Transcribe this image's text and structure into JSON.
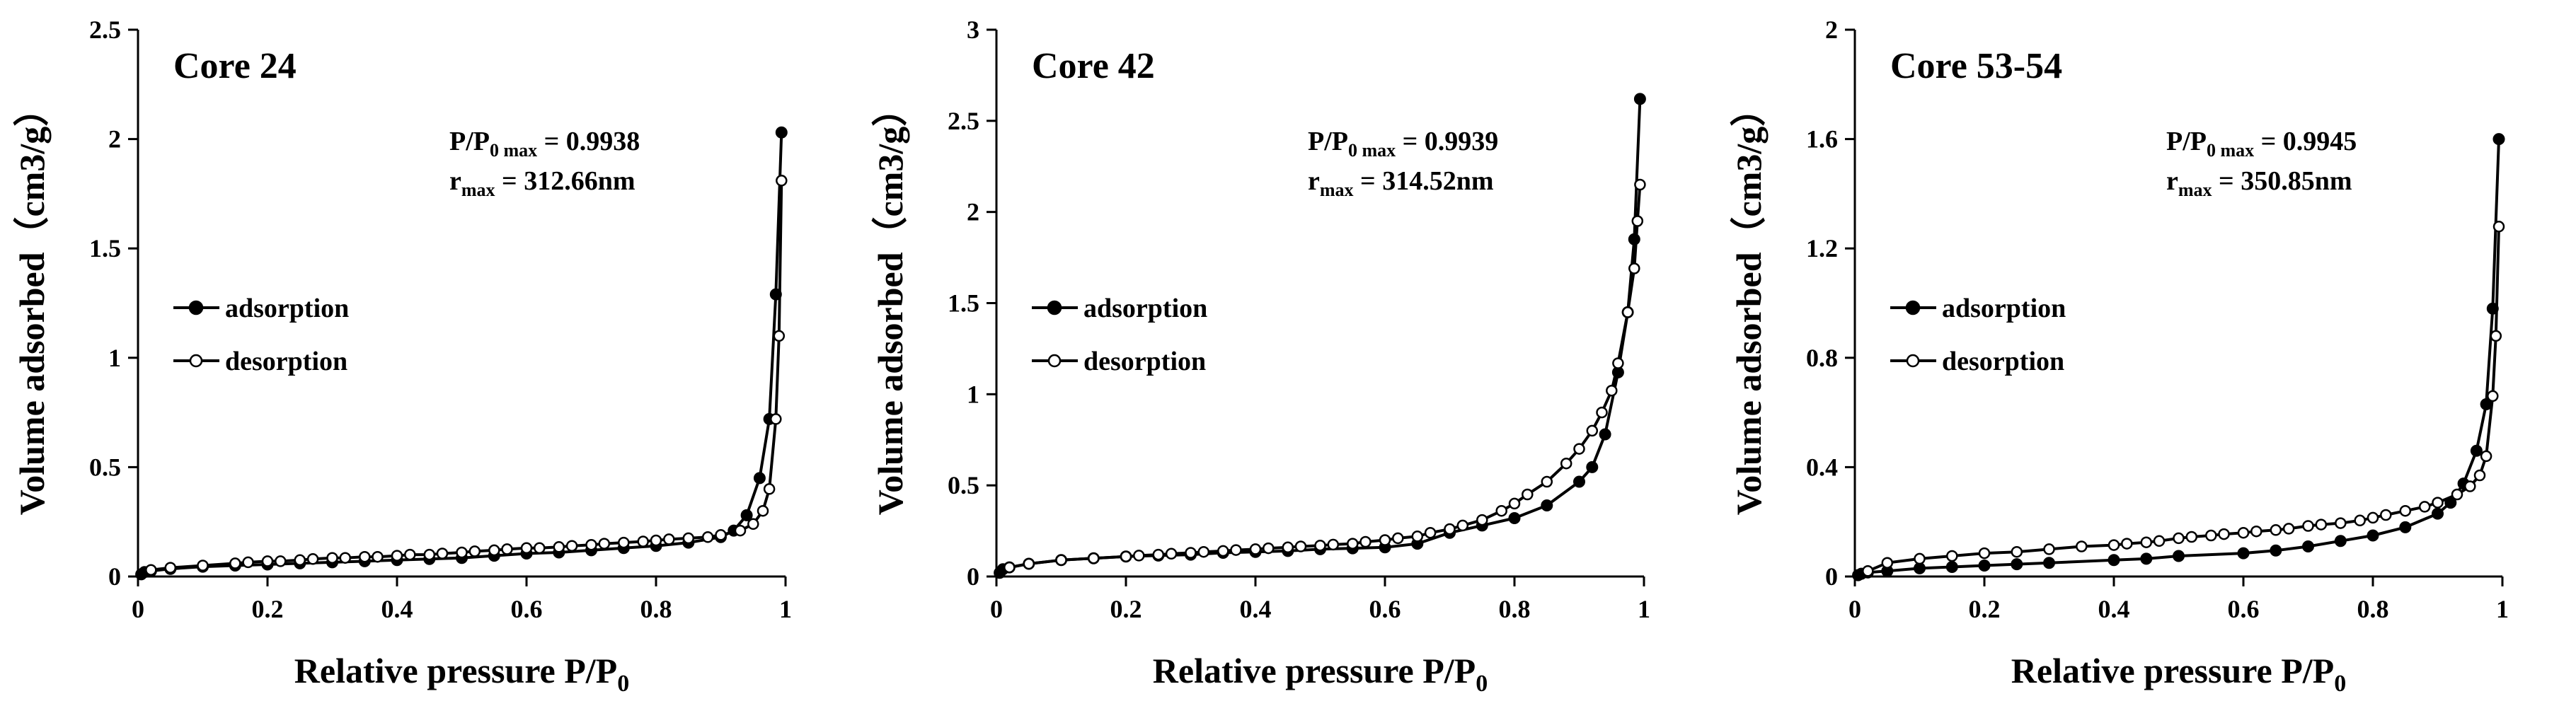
{
  "chart_data": [
    {
      "type": "line",
      "title": "Core 24",
      "xlabel": "Relative pressure P/P",
      "xlabel_sub": "0",
      "ylabel": "Volume adsorbed（cm3/g）",
      "xlim": [
        0,
        1
      ],
      "ylim": [
        0,
        2.5
      ],
      "xticks": [
        0,
        0.2,
        0.4,
        0.6,
        0.8,
        1
      ],
      "xtick_labels": [
        "0",
        "0.2",
        "0.4",
        "0.6",
        "0.8",
        "1"
      ],
      "yticks": [
        0,
        0.5,
        1,
        1.5,
        2,
        2.5
      ],
      "ytick_labels": [
        "0",
        "0.5",
        "1",
        "1.5",
        "2",
        "2.5"
      ],
      "annotation_pp_prefix": "P/P",
      "annotation_pp_sub": "0 max",
      "annotation_pp_value": " = 0.9938",
      "annotation_r_prefix": "r",
      "annotation_r_sub": "max",
      "annotation_r_value": " = 312.66nm",
      "legend": {
        "placement": "middle-left",
        "entries": [
          "adsorption",
          "desorption"
        ]
      },
      "series": [
        {
          "name": "adsorption",
          "marker": "filled",
          "x": [
            0.005,
            0.01,
            0.02,
            0.05,
            0.1,
            0.15,
            0.2,
            0.25,
            0.3,
            0.35,
            0.4,
            0.45,
            0.5,
            0.55,
            0.6,
            0.65,
            0.7,
            0.75,
            0.8,
            0.85,
            0.9,
            0.92,
            0.94,
            0.96,
            0.975,
            0.985,
            0.9938
          ],
          "y": [
            0.01,
            0.02,
            0.025,
            0.035,
            0.045,
            0.05,
            0.055,
            0.06,
            0.065,
            0.07,
            0.075,
            0.08,
            0.085,
            0.095,
            0.105,
            0.11,
            0.12,
            0.13,
            0.14,
            0.155,
            0.18,
            0.21,
            0.28,
            0.45,
            0.72,
            1.29,
            2.03
          ]
        },
        {
          "name": "desorption",
          "marker": "open",
          "x": [
            0.9938,
            0.99,
            0.985,
            0.975,
            0.965,
            0.95,
            0.93,
            0.9,
            0.88,
            0.85,
            0.82,
            0.8,
            0.78,
            0.75,
            0.72,
            0.7,
            0.67,
            0.65,
            0.62,
            0.6,
            0.57,
            0.55,
            0.52,
            0.5,
            0.47,
            0.45,
            0.42,
            0.4,
            0.37,
            0.35,
            0.32,
            0.3,
            0.27,
            0.25,
            0.22,
            0.2,
            0.17,
            0.15,
            0.1,
            0.05,
            0.02
          ],
          "y": [
            1.81,
            1.1,
            0.72,
            0.4,
            0.3,
            0.24,
            0.21,
            0.19,
            0.18,
            0.175,
            0.17,
            0.165,
            0.16,
            0.155,
            0.15,
            0.145,
            0.14,
            0.135,
            0.13,
            0.13,
            0.125,
            0.12,
            0.115,
            0.11,
            0.105,
            0.1,
            0.1,
            0.095,
            0.09,
            0.09,
            0.085,
            0.085,
            0.08,
            0.075,
            0.07,
            0.07,
            0.065,
            0.06,
            0.05,
            0.04,
            0.03
          ]
        }
      ]
    },
    {
      "type": "line",
      "title": "Core 42",
      "xlabel": "Relative pressure P/P",
      "xlabel_sub": "0",
      "ylabel": "Volume adsorbed（cm3/g）",
      "xlim": [
        0,
        1
      ],
      "ylim": [
        0,
        3
      ],
      "xticks": [
        0,
        0.2,
        0.4,
        0.6,
        0.8,
        1
      ],
      "xtick_labels": [
        "0",
        "0.2",
        "0.4",
        "0.6",
        "0.8",
        "1"
      ],
      "yticks": [
        0,
        0.5,
        1,
        1.5,
        2,
        2.5,
        3
      ],
      "ytick_labels": [
        "0",
        "0.5",
        "1",
        "1.5",
        "2",
        "2.5",
        "3"
      ],
      "annotation_pp_prefix": "P/P",
      "annotation_pp_sub": "0 max",
      "annotation_pp_value": " = 0.9939",
      "annotation_r_prefix": "r",
      "annotation_r_sub": "max",
      "annotation_r_value": " = 314.52nm",
      "legend": {
        "placement": "middle-left",
        "entries": [
          "adsorption",
          "desorption"
        ]
      },
      "series": [
        {
          "name": "adsorption",
          "marker": "filled",
          "x": [
            0.005,
            0.01,
            0.02,
            0.05,
            0.1,
            0.15,
            0.2,
            0.25,
            0.3,
            0.35,
            0.4,
            0.45,
            0.5,
            0.55,
            0.6,
            0.65,
            0.7,
            0.75,
            0.8,
            0.85,
            0.9,
            0.92,
            0.94,
            0.96,
            0.975,
            0.985,
            0.9939
          ],
          "y": [
            0.02,
            0.04,
            0.05,
            0.07,
            0.09,
            0.1,
            0.11,
            0.115,
            0.12,
            0.13,
            0.135,
            0.14,
            0.15,
            0.155,
            0.16,
            0.18,
            0.24,
            0.28,
            0.32,
            0.39,
            0.52,
            0.6,
            0.78,
            1.12,
            1.45,
            1.85,
            2.62
          ]
        },
        {
          "name": "desorption",
          "marker": "open",
          "x": [
            0.9939,
            0.99,
            0.985,
            0.975,
            0.96,
            0.95,
            0.935,
            0.92,
            0.9,
            0.88,
            0.85,
            0.82,
            0.8,
            0.78,
            0.75,
            0.72,
            0.7,
            0.67,
            0.65,
            0.62,
            0.6,
            0.57,
            0.55,
            0.52,
            0.5,
            0.47,
            0.45,
            0.42,
            0.4,
            0.37,
            0.35,
            0.32,
            0.3,
            0.27,
            0.25,
            0.22,
            0.2,
            0.15,
            0.1,
            0.05,
            0.02
          ],
          "y": [
            2.15,
            1.95,
            1.69,
            1.45,
            1.17,
            1.02,
            0.9,
            0.8,
            0.7,
            0.62,
            0.52,
            0.45,
            0.4,
            0.36,
            0.31,
            0.28,
            0.26,
            0.24,
            0.22,
            0.21,
            0.2,
            0.19,
            0.18,
            0.175,
            0.17,
            0.165,
            0.16,
            0.155,
            0.15,
            0.145,
            0.14,
            0.135,
            0.13,
            0.125,
            0.12,
            0.115,
            0.11,
            0.1,
            0.09,
            0.07,
            0.05
          ]
        }
      ]
    },
    {
      "type": "line",
      "title": "Core 53-54",
      "xlabel": "Relative pressure P/P",
      "xlabel_sub": "0",
      "ylabel": "Volume adsorbed（cm3/g）",
      "xlim": [
        0,
        1
      ],
      "ylim": [
        0,
        2
      ],
      "xticks": [
        0,
        0.2,
        0.4,
        0.6,
        0.8,
        1
      ],
      "xtick_labels": [
        "0",
        "0.2",
        "0.4",
        "0.6",
        "0.8",
        "1"
      ],
      "yticks": [
        0,
        0.4,
        0.8,
        1.2,
        1.6,
        2
      ],
      "ytick_labels": [
        "0",
        "0.4",
        "0.8",
        "1.2",
        "1.6",
        "2"
      ],
      "annotation_pp_prefix": "P/P",
      "annotation_pp_sub": "0 max",
      "annotation_pp_value": " = 0.9945",
      "annotation_r_prefix": "r",
      "annotation_r_sub": "max",
      "annotation_r_value": " = 350.85nm",
      "legend": {
        "placement": "middle-left",
        "entries": [
          "adsorption",
          "desorption"
        ]
      },
      "series": [
        {
          "name": "adsorption",
          "marker": "filled",
          "x": [
            0.005,
            0.01,
            0.02,
            0.05,
            0.1,
            0.15,
            0.2,
            0.25,
            0.3,
            0.4,
            0.45,
            0.5,
            0.6,
            0.65,
            0.7,
            0.75,
            0.8,
            0.85,
            0.9,
            0.92,
            0.94,
            0.96,
            0.975,
            0.985,
            0.9945
          ],
          "y": [
            0.005,
            0.01,
            0.015,
            0.02,
            0.03,
            0.035,
            0.04,
            0.045,
            0.05,
            0.06,
            0.065,
            0.075,
            0.085,
            0.095,
            0.11,
            0.13,
            0.15,
            0.18,
            0.23,
            0.27,
            0.34,
            0.46,
            0.63,
            0.98,
            1.6
          ]
        },
        {
          "name": "desorption",
          "marker": "open",
          "x": [
            0.9945,
            0.99,
            0.985,
            0.975,
            0.965,
            0.95,
            0.93,
            0.9,
            0.88,
            0.85,
            0.82,
            0.8,
            0.78,
            0.75,
            0.72,
            0.7,
            0.67,
            0.65,
            0.62,
            0.6,
            0.57,
            0.55,
            0.52,
            0.5,
            0.47,
            0.45,
            0.42,
            0.4,
            0.35,
            0.3,
            0.25,
            0.2,
            0.15,
            0.1,
            0.05,
            0.02
          ],
          "y": [
            1.28,
            0.88,
            0.66,
            0.44,
            0.37,
            0.33,
            0.3,
            0.27,
            0.255,
            0.24,
            0.225,
            0.215,
            0.205,
            0.195,
            0.19,
            0.185,
            0.175,
            0.17,
            0.165,
            0.16,
            0.155,
            0.15,
            0.145,
            0.14,
            0.13,
            0.125,
            0.12,
            0.115,
            0.11,
            0.1,
            0.09,
            0.085,
            0.075,
            0.065,
            0.05,
            0.02
          ]
        }
      ]
    }
  ]
}
